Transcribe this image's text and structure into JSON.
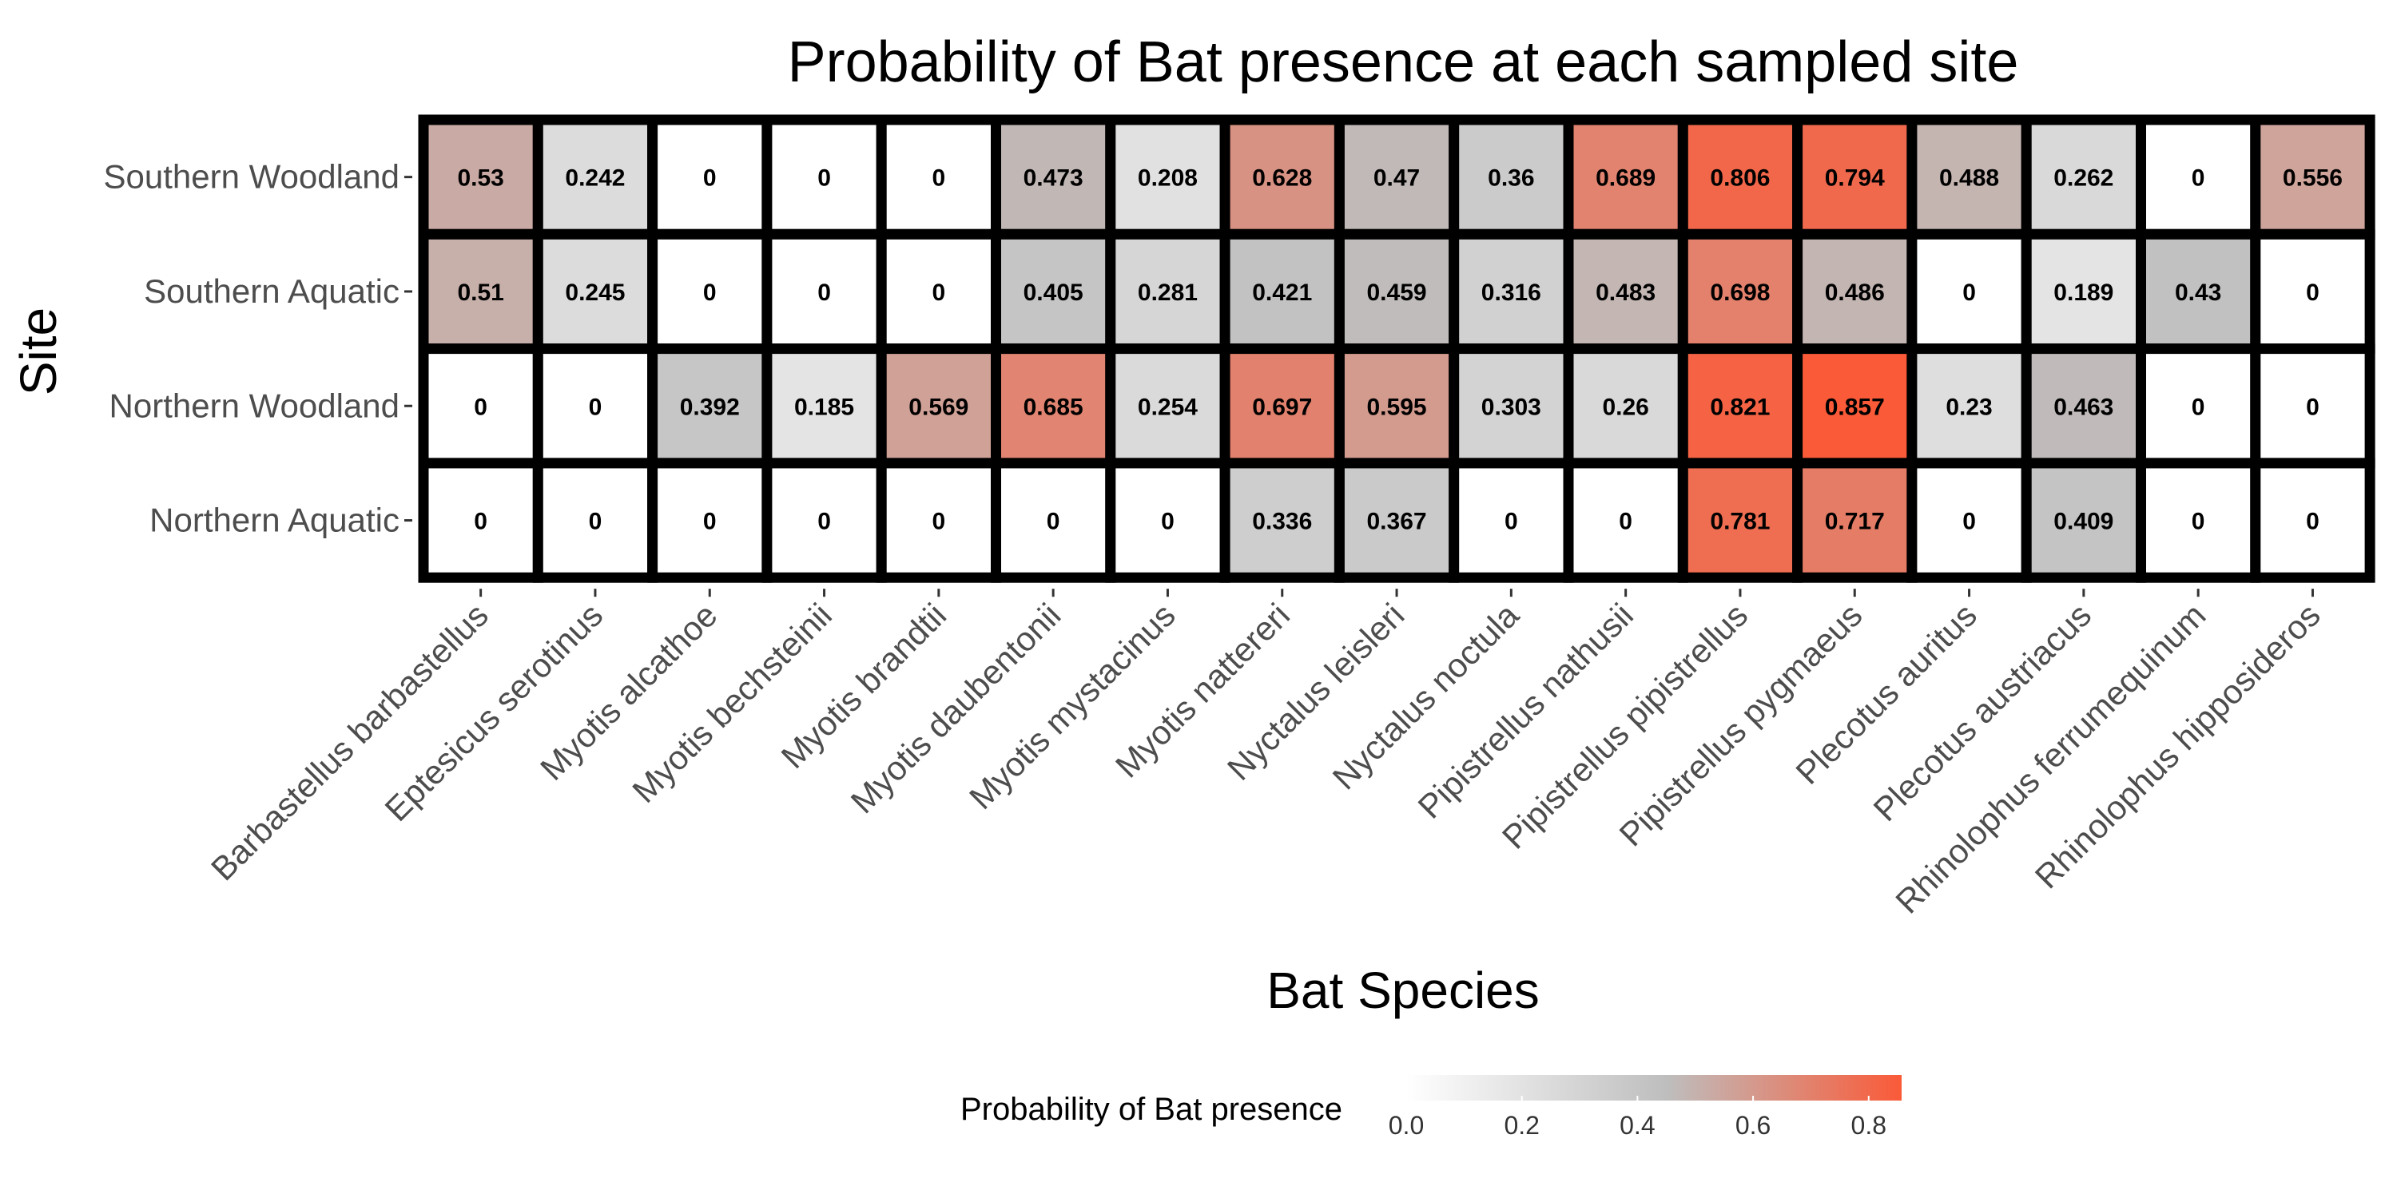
{
  "chart_data": {
    "type": "heatmap",
    "title": "Probability of Bat presence at each sampled site",
    "xlabel": "Bat Species",
    "ylabel": "Site",
    "x_categories": [
      "Barbastellus barbastellus",
      "Eptesicus serotinus",
      "Myotis alcathoe",
      "Myotis bechsteinii",
      "Myotis brandtii",
      "Myotis daubentonii",
      "Myotis mystacinus",
      "Myotis nattereri",
      "Nyctalus leisleri",
      "Nyctalus noctula",
      "Pipistrellus nathusii",
      "Pipistrellus pipistrellus",
      "Pipistrellus pygmaeus",
      "Plecotus auritus",
      "Plecotus austriacus",
      "Rhinolophus ferrumequinum",
      "Rhinolophus hipposideros"
    ],
    "y_categories": [
      "Southern Woodland",
      "Southern Aquatic",
      "Northern Woodland",
      "Northern Aquatic"
    ],
    "values": [
      [
        0.53,
        0.242,
        0,
        0,
        0,
        0.473,
        0.208,
        0.628,
        0.47,
        0.36,
        0.689,
        0.806,
        0.794,
        0.488,
        0.262,
        0,
        0.556
      ],
      [
        0.51,
        0.245,
        0,
        0,
        0,
        0.405,
        0.281,
        0.421,
        0.459,
        0.316,
        0.483,
        0.698,
        0.486,
        0,
        0.189,
        0.43,
        0
      ],
      [
        0,
        0,
        0.392,
        0.185,
        0.569,
        0.685,
        0.254,
        0.697,
        0.595,
        0.303,
        0.26,
        0.821,
        0.857,
        0.23,
        0.463,
        0,
        0
      ],
      [
        0,
        0,
        0,
        0,
        0,
        0,
        0,
        0.336,
        0.367,
        0,
        0,
        0.781,
        0.717,
        0,
        0.409,
        0,
        0
      ]
    ],
    "value_labels": [
      [
        "0.53",
        "0.242",
        "0",
        "0",
        "0",
        "0.473",
        "0.208",
        "0.628",
        "0.47",
        "0.36",
        "0.689",
        "0.806",
        "0.794",
        "0.488",
        "0.262",
        "0",
        "0.556"
      ],
      [
        "0.51",
        "0.245",
        "0",
        "0",
        "0",
        "0.405",
        "0.281",
        "0.421",
        "0.459",
        "0.316",
        "0.483",
        "0.698",
        "0.486",
        "0",
        "0.189",
        "0.43",
        "0"
      ],
      [
        "0",
        "0",
        "0.392",
        "0.185",
        "0.569",
        "0.685",
        "0.254",
        "0.697",
        "0.595",
        "0.303",
        "0.26",
        "0.821",
        "0.857",
        "0.23",
        "0.463",
        "0",
        "0"
      ],
      [
        "0",
        "0",
        "0",
        "0",
        "0",
        "0",
        "0",
        "0.336",
        "0.367",
        "0",
        "0",
        "0.781",
        "0.717",
        "0",
        "0.409",
        "0",
        "0"
      ]
    ],
    "color_scale": {
      "min": 0,
      "max": 0.857,
      "stops": [
        {
          "value": 0,
          "color": "#ffffff"
        },
        {
          "value": 0.45,
          "color": "#bebebe"
        },
        {
          "value": 0.857,
          "color": "#fa5a38"
        }
      ]
    },
    "legend": {
      "title": "Probability of Bat presence",
      "ticks": [
        "0.0",
        "0.2",
        "0.4",
        "0.6",
        "0.8"
      ],
      "tick_values": [
        0,
        0.2,
        0.4,
        0.6,
        0.8
      ],
      "placement": "bottom"
    },
    "colors": {
      "panel_background": "#ebebeb",
      "cell_border": "#000000",
      "tick_text": "#4d4d4d"
    }
  }
}
